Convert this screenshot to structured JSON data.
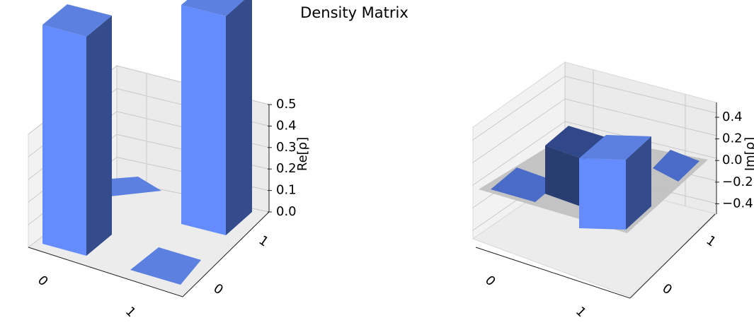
{
  "chart_data": {
    "title": "Density Matrix",
    "type": "bar3d",
    "charts": [
      {
        "zlabel": "Re[ρ]",
        "zlim": [
          0,
          0.5
        ],
        "zticks": [
          "0.0",
          "0.1",
          "0.2",
          "0.3",
          "0.4",
          "0.5"
        ],
        "x_ticks": [
          "0",
          "1"
        ],
        "y_ticks": [
          "0",
          "1"
        ],
        "bars": [
          {
            "row": "0",
            "col": "0",
            "value": 0.5
          },
          {
            "row": "0",
            "col": "1",
            "value": 0.0
          },
          {
            "row": "1",
            "col": "0",
            "value": 0.0
          },
          {
            "row": "1",
            "col": "1",
            "value": 0.5
          }
        ]
      },
      {
        "zlabel": "Im[ρ]",
        "zlim": [
          -0.5,
          0.5
        ],
        "zticks": [
          "0.4",
          "0.2",
          "0.0",
          "−0.2",
          "−0.4"
        ],
        "x_ticks": [
          "0",
          "1"
        ],
        "y_ticks": [
          "0",
          "1"
        ],
        "bars": [
          {
            "row": "0",
            "col": "0",
            "value": 0.0
          },
          {
            "row": "0",
            "col": "1",
            "value": -0.5
          },
          {
            "row": "1",
            "col": "0",
            "value": 0.5
          },
          {
            "row": "1",
            "col": "1",
            "value": 0.0
          }
        ]
      }
    ],
    "colors": {
      "bar_top": "#5b80e0",
      "bar_front": "#648cff",
      "bar_side": "#344c8c",
      "bar_dark": "#2a3d73",
      "flat": "#4a6cc8",
      "pane": "#f2f2f2",
      "grid": "#c8c8c8",
      "zero_plane": "#bfbfbf"
    }
  }
}
